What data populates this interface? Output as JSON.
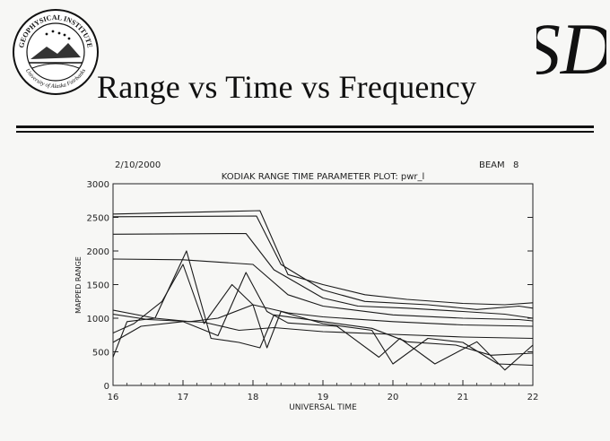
{
  "slide": {
    "title": "Range vs Time vs Frequency",
    "logo_text_top": "GEOPHYSICAL INSTITUTE",
    "logo_text_bottom": "University of Alaska Fairbanks",
    "sd_logo": "SD"
  },
  "chart_data": {
    "type": "line",
    "date": "2/10/2000",
    "beam_label": "BEAM",
    "beam_value": "8",
    "title": "KODIAK RANGE TIME PARAMETER PLOT: pwr_l",
    "xlabel": "UNIVERSAL TIME",
    "ylabel": "MAPPED RANGE",
    "xlim": [
      16,
      22
    ],
    "ylim": [
      0,
      3000
    ],
    "xticks": [
      "16",
      "17",
      "18",
      "19",
      "20",
      "21",
      "22"
    ],
    "yticks": [
      "0",
      "500",
      "1000",
      "1500",
      "2000",
      "2500",
      "3000"
    ],
    "series": [
      {
        "values": [
          [
            16,
            2550
          ],
          [
            18.1,
            2600
          ],
          [
            18.5,
            1650
          ],
          [
            19,
            1500
          ],
          [
            19.6,
            1350
          ],
          [
            20.2,
            1280
          ],
          [
            21,
            1220
          ],
          [
            21.6,
            1200
          ],
          [
            22,
            1230
          ]
        ]
      },
      {
        "values": [
          [
            16,
            2510
          ],
          [
            18.05,
            2520
          ],
          [
            18.4,
            1800
          ],
          [
            19,
            1420
          ],
          [
            19.6,
            1250
          ],
          [
            20.5,
            1200
          ],
          [
            21.2,
            1130
          ],
          [
            21.8,
            1180
          ],
          [
            22,
            1150
          ]
        ]
      },
      {
        "values": [
          [
            16,
            2250
          ],
          [
            17.9,
            2260
          ],
          [
            18.3,
            1720
          ],
          [
            19,
            1300
          ],
          [
            19.5,
            1180
          ],
          [
            20.2,
            1150
          ],
          [
            21,
            1100
          ],
          [
            21.6,
            1060
          ],
          [
            22,
            1000
          ]
        ]
      },
      {
        "values": [
          [
            16,
            1880
          ],
          [
            17,
            1870
          ],
          [
            18,
            1800
          ],
          [
            18.5,
            1350
          ],
          [
            19,
            1180
          ],
          [
            20,
            1050
          ],
          [
            21,
            1000
          ],
          [
            21.8,
            980
          ],
          [
            22,
            960
          ]
        ]
      },
      {
        "values": [
          [
            16,
            1120
          ],
          [
            16.6,
            1000
          ],
          [
            17.1,
            950
          ],
          [
            17.5,
            1000
          ],
          [
            18,
            1200
          ],
          [
            18.5,
            1080
          ],
          [
            19,
            1020
          ],
          [
            20,
            950
          ],
          [
            21,
            900
          ],
          [
            22,
            880
          ]
        ]
      },
      {
        "values": [
          [
            16,
            1060
          ],
          [
            16.5,
            980
          ],
          [
            17.3,
            940
          ],
          [
            17.8,
            820
          ],
          [
            18.3,
            860
          ],
          [
            19,
            800
          ],
          [
            20,
            760
          ],
          [
            21,
            720
          ],
          [
            22,
            700
          ]
        ]
      },
      {
        "values": [
          [
            16,
            420
          ],
          [
            16.2,
            950
          ],
          [
            16.6,
            1000
          ],
          [
            17.05,
            2000
          ],
          [
            17.4,
            700
          ],
          [
            17.8,
            640
          ],
          [
            18.1,
            560
          ],
          [
            18.3,
            1050
          ],
          [
            19,
            950
          ],
          [
            19.7,
            850
          ],
          [
            20.2,
            650
          ],
          [
            20.9,
            600
          ],
          [
            21.4,
            450
          ],
          [
            22,
            480
          ]
        ]
      },
      {
        "values": [
          [
            16,
            780
          ],
          [
            16.3,
            920
          ],
          [
            16.7,
            1250
          ],
          [
            17,
            1800
          ],
          [
            17.3,
            920
          ],
          [
            17.7,
            1500
          ],
          [
            18,
            1200
          ],
          [
            18.2,
            560
          ],
          [
            18.4,
            1100
          ],
          [
            19,
            920
          ],
          [
            19.7,
            820
          ],
          [
            20,
            320
          ],
          [
            20.5,
            700
          ],
          [
            21,
            640
          ],
          [
            21.5,
            320
          ],
          [
            22,
            300
          ]
        ]
      },
      {
        "values": [
          [
            16,
            640
          ],
          [
            16.4,
            880
          ],
          [
            17,
            950
          ],
          [
            17.5,
            740
          ],
          [
            17.9,
            1680
          ],
          [
            18.2,
            1100
          ],
          [
            18.5,
            930
          ],
          [
            19.2,
            880
          ],
          [
            19.8,
            420
          ],
          [
            20.1,
            700
          ],
          [
            20.6,
            320
          ],
          [
            21.2,
            650
          ],
          [
            21.6,
            230
          ],
          [
            22,
            600
          ]
        ]
      }
    ]
  }
}
